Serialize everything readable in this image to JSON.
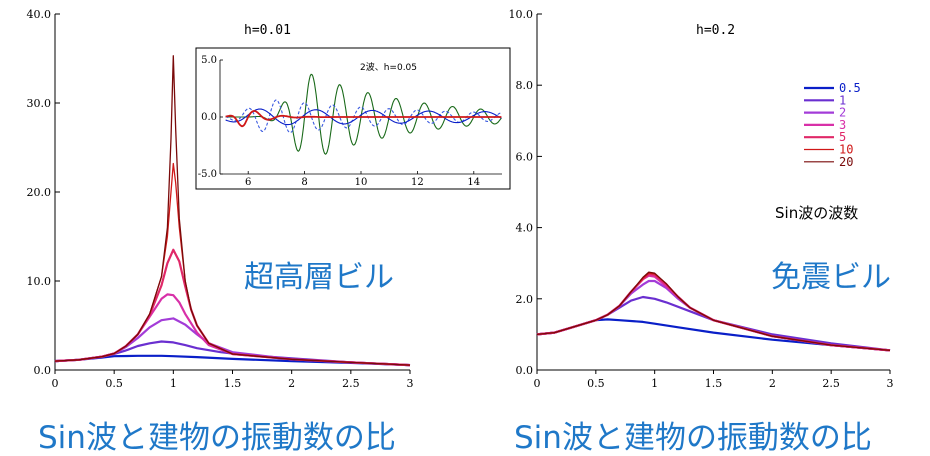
{
  "chart_data": [
    {
      "type": "line",
      "label": "h=0.01",
      "annotation": "超高層ビル",
      "xlabel": "Sin波と建物の振動数の比",
      "xlim": [
        0,
        3
      ],
      "ylim": [
        0,
        40
      ],
      "xticks": [
        "0",
        "0.5",
        "1",
        "1.5",
        "2",
        "2.5",
        "3"
      ],
      "yticks": [
        "0.0",
        "10.0",
        "20.0",
        "30.0",
        "40.0"
      ],
      "series": [
        {
          "name": "0.5",
          "color": "#0a1fc8",
          "x": [
            0,
            0.2,
            0.4,
            0.5,
            0.7,
            0.9,
            1.0,
            1.2,
            1.5,
            2.0,
            2.5,
            3.0
          ],
          "y": [
            1.0,
            1.15,
            1.4,
            1.55,
            1.6,
            1.6,
            1.55,
            1.45,
            1.25,
            1.0,
            0.8,
            0.55
          ]
        },
        {
          "name": "1",
          "color": "#6a2fd0",
          "x": [
            0,
            0.2,
            0.4,
            0.5,
            0.6,
            0.7,
            0.8,
            0.9,
            1.0,
            1.1,
            1.2,
            1.4,
            1.6,
            2.0,
            2.5,
            3.0
          ],
          "y": [
            1.0,
            1.15,
            1.5,
            1.8,
            2.2,
            2.7,
            3.0,
            3.2,
            3.1,
            2.8,
            2.45,
            2.0,
            1.7,
            1.3,
            0.85,
            0.55
          ]
        },
        {
          "name": "2",
          "color": "#a33cd8",
          "x": [
            0,
            0.2,
            0.4,
            0.5,
            0.6,
            0.7,
            0.8,
            0.9,
            1.0,
            1.1,
            1.2,
            1.3,
            1.5,
            2.0,
            2.5,
            3.0
          ],
          "y": [
            1.0,
            1.15,
            1.5,
            1.85,
            2.6,
            3.6,
            4.8,
            5.6,
            5.8,
            5.1,
            4.0,
            3.0,
            2.0,
            1.2,
            0.85,
            0.55
          ]
        },
        {
          "name": "3",
          "color": "#d830a8",
          "x": [
            0,
            0.2,
            0.4,
            0.5,
            0.6,
            0.7,
            0.8,
            0.9,
            0.95,
            1.0,
            1.05,
            1.1,
            1.2,
            1.3,
            1.5,
            2.0,
            2.5,
            3.0
          ],
          "y": [
            1.0,
            1.15,
            1.5,
            1.85,
            2.7,
            4.0,
            6.0,
            8.0,
            8.5,
            8.4,
            7.6,
            6.3,
            4.2,
            2.8,
            1.8,
            1.2,
            0.85,
            0.55
          ]
        },
        {
          "name": "5",
          "color": "#e02868",
          "x": [
            0,
            0.2,
            0.4,
            0.5,
            0.6,
            0.7,
            0.8,
            0.9,
            0.95,
            1.0,
            1.05,
            1.1,
            1.15,
            1.2,
            1.3,
            1.5,
            2.0,
            2.5,
            3.0
          ],
          "y": [
            1.0,
            1.15,
            1.5,
            1.85,
            2.7,
            4.0,
            6.2,
            9.5,
            12.0,
            13.5,
            12.2,
            9.4,
            6.8,
            5.0,
            3.0,
            1.8,
            1.2,
            0.85,
            0.55
          ]
        },
        {
          "name": "10",
          "color": "#d01818",
          "x": [
            0,
            0.2,
            0.4,
            0.5,
            0.6,
            0.7,
            0.8,
            0.9,
            0.95,
            0.98,
            1.0,
            1.02,
            1.05,
            1.1,
            1.15,
            1.2,
            1.3,
            1.5,
            2.0,
            2.5,
            3.0
          ],
          "y": [
            1.0,
            1.15,
            1.5,
            1.85,
            2.7,
            4.0,
            6.3,
            10.5,
            15.0,
            20.0,
            23.2,
            21.0,
            16.0,
            10.0,
            6.8,
            5.0,
            3.0,
            1.8,
            1.2,
            0.85,
            0.55
          ]
        },
        {
          "name": "20",
          "color": "#7a0a0a",
          "x": [
            0,
            0.2,
            0.4,
            0.5,
            0.6,
            0.7,
            0.8,
            0.9,
            0.95,
            0.98,
            1.0,
            1.02,
            1.05,
            1.1,
            1.15,
            1.2,
            1.3,
            1.5,
            2.0,
            2.5,
            3.0
          ],
          "y": [
            1.0,
            1.15,
            1.5,
            1.85,
            2.7,
            4.0,
            6.3,
            10.5,
            16.0,
            26.0,
            35.3,
            27.0,
            17.0,
            10.0,
            6.8,
            5.0,
            3.0,
            1.8,
            1.2,
            0.85,
            0.55
          ]
        }
      ],
      "inset": {
        "title": "2波、h=0.05",
        "xlim": [
          5,
          15
        ],
        "ylim": [
          -5,
          5
        ],
        "xticks": [
          "6",
          "8",
          "10",
          "12",
          "14"
        ],
        "yticks": [
          "5.0",
          "0.0",
          "-5.0"
        ],
        "series": [
          {
            "color": "#1a6a1a",
            "dash": "",
            "amp": 3.8,
            "peak_t": 8.2,
            "decay": 0.28,
            "period": 1.0,
            "phase": 0.0,
            "rise": 0.9
          },
          {
            "color": "#3a5ae0",
            "dash": "3,2",
            "amp": 1.5,
            "peak_t": 7.0,
            "decay": 0.18,
            "period": 1.0,
            "phase": 1.6,
            "rise": 1.2
          },
          {
            "color": "#0a1fc8",
            "dash": "",
            "amp": 0.7,
            "peak_t": 6.5,
            "decay": 0.05,
            "period": 2.0,
            "phase": 0.3,
            "rise": 1.5
          },
          {
            "color": "#d01818",
            "dash": "",
            "amp": 0.9,
            "peak_t": 5.9,
            "decay": 1.6,
            "period": 1.0,
            "phase": 0.0,
            "rise": 0.4
          }
        ]
      }
    },
    {
      "type": "line",
      "label": "h=0.2",
      "annotation": "免震ビル",
      "xlabel": "Sin波と建物の振動数の比",
      "xlim": [
        0,
        3
      ],
      "ylim": [
        0,
        10
      ],
      "xticks": [
        "0",
        "0.5",
        "1",
        "1.5",
        "2",
        "2.5",
        "3"
      ],
      "yticks": [
        "0.0",
        "2.0",
        "4.0",
        "6.0",
        "8.0",
        "10.0"
      ],
      "legend_title": "Sin波の波数",
      "legend_position": "right",
      "series": [
        {
          "name": "0.5",
          "color": "#0a1fc8",
          "x": [
            0,
            0.15,
            0.3,
            0.5,
            0.6,
            0.7,
            0.9,
            1.0,
            1.2,
            1.5,
            2.0,
            2.5,
            3.0
          ],
          "y": [
            1.0,
            1.05,
            1.2,
            1.4,
            1.42,
            1.4,
            1.35,
            1.3,
            1.2,
            1.05,
            0.85,
            0.7,
            0.55
          ]
        },
        {
          "name": "1",
          "color": "#6a2fd0",
          "x": [
            0,
            0.15,
            0.3,
            0.5,
            0.6,
            0.7,
            0.8,
            0.9,
            1.0,
            1.1,
            1.3,
            1.5,
            2.0,
            2.5,
            3.0
          ],
          "y": [
            1.0,
            1.05,
            1.2,
            1.4,
            1.55,
            1.75,
            1.95,
            2.05,
            2.0,
            1.9,
            1.65,
            1.4,
            1.0,
            0.75,
            0.55
          ]
        },
        {
          "name": "2",
          "color": "#a33cd8",
          "x": [
            0,
            0.15,
            0.3,
            0.5,
            0.6,
            0.7,
            0.8,
            0.9,
            0.95,
            1.0,
            1.1,
            1.2,
            1.3,
            1.5,
            2.0,
            2.5,
            3.0
          ],
          "y": [
            1.0,
            1.05,
            1.2,
            1.4,
            1.55,
            1.8,
            2.15,
            2.4,
            2.5,
            2.5,
            2.3,
            2.0,
            1.75,
            1.4,
            0.95,
            0.7,
            0.55
          ]
        },
        {
          "name": "3",
          "color": "#d830a8",
          "x": [
            0,
            0.15,
            0.3,
            0.5,
            0.6,
            0.7,
            0.8,
            0.9,
            0.95,
            1.0,
            1.1,
            1.2,
            1.3,
            1.5,
            2.0,
            2.5,
            3.0
          ],
          "y": [
            1.0,
            1.05,
            1.2,
            1.4,
            1.55,
            1.8,
            2.2,
            2.55,
            2.65,
            2.62,
            2.35,
            2.05,
            1.75,
            1.4,
            0.95,
            0.7,
            0.55
          ]
        },
        {
          "name": "5",
          "color": "#e02868",
          "x": [
            0,
            0.15,
            0.3,
            0.5,
            0.6,
            0.7,
            0.8,
            0.9,
            0.95,
            1.0,
            1.1,
            1.2,
            1.3,
            1.5,
            2.0,
            2.5,
            3.0
          ],
          "y": [
            1.0,
            1.05,
            1.2,
            1.4,
            1.55,
            1.8,
            2.2,
            2.55,
            2.7,
            2.68,
            2.4,
            2.05,
            1.75,
            1.4,
            0.95,
            0.7,
            0.55
          ]
        },
        {
          "name": "10",
          "color": "#d01818",
          "x": [
            0,
            0.15,
            0.3,
            0.5,
            0.6,
            0.7,
            0.8,
            0.9,
            0.95,
            1.0,
            1.1,
            1.2,
            1.3,
            1.5,
            2.0,
            2.5,
            3.0
          ],
          "y": [
            1.0,
            1.05,
            1.2,
            1.4,
            1.55,
            1.8,
            2.2,
            2.58,
            2.72,
            2.7,
            2.42,
            2.05,
            1.75,
            1.4,
            0.95,
            0.7,
            0.55
          ]
        },
        {
          "name": "20",
          "color": "#7a0a0a",
          "x": [
            0,
            0.15,
            0.3,
            0.5,
            0.6,
            0.7,
            0.8,
            0.9,
            0.95,
            1.0,
            1.1,
            1.2,
            1.3,
            1.5,
            2.0,
            2.5,
            3.0
          ],
          "y": [
            1.0,
            1.05,
            1.2,
            1.4,
            1.55,
            1.8,
            2.2,
            2.6,
            2.75,
            2.72,
            2.42,
            2.05,
            1.75,
            1.4,
            0.95,
            0.7,
            0.55
          ]
        }
      ]
    }
  ]
}
